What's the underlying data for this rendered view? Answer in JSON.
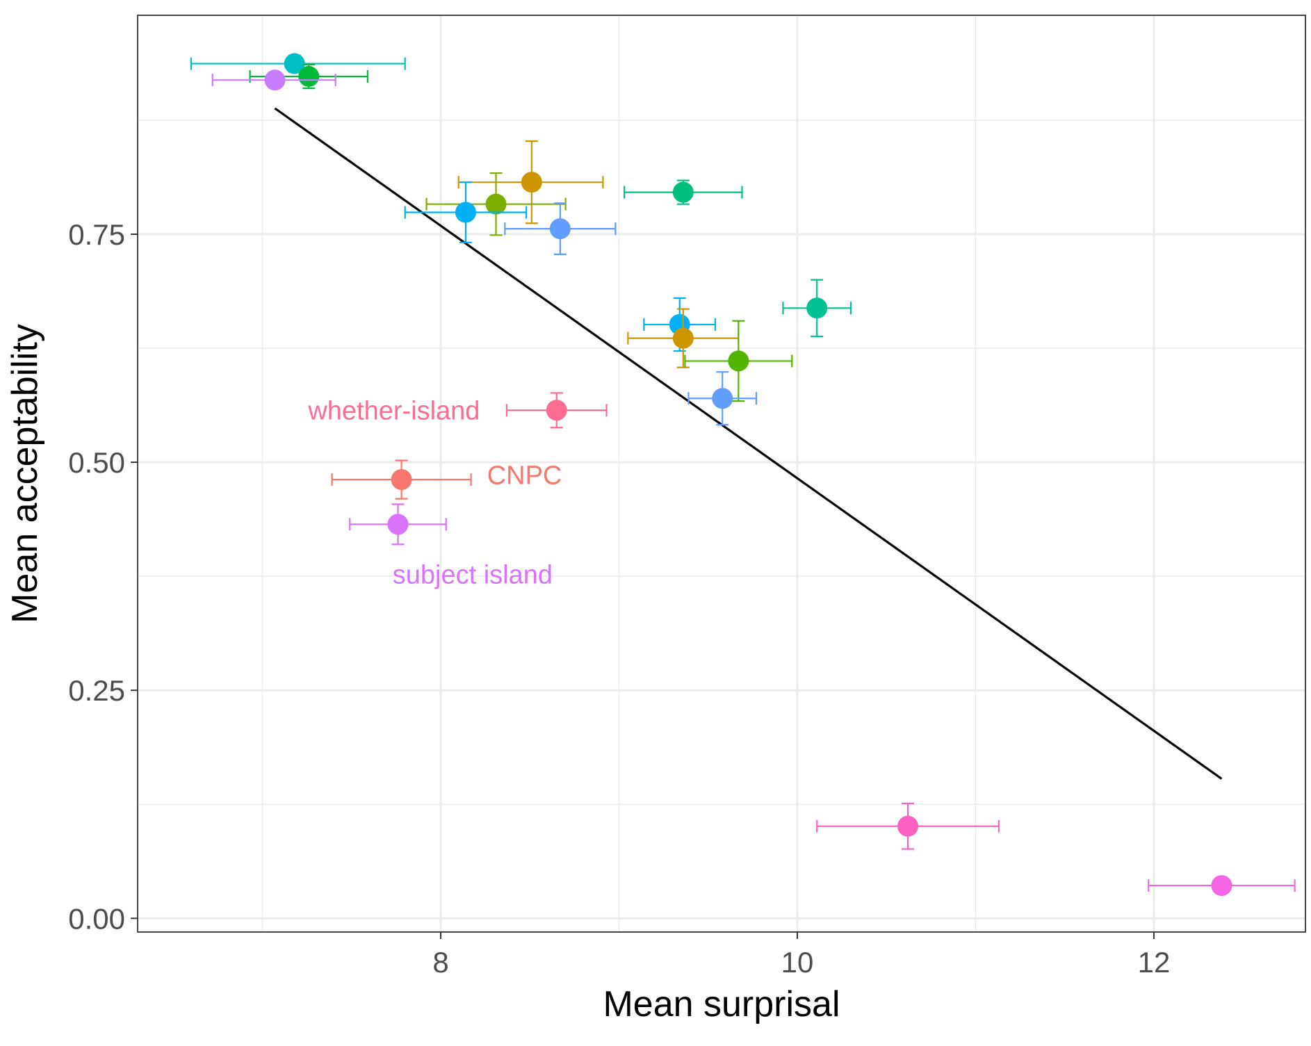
{
  "chart_data": {
    "type": "scatter",
    "title": "",
    "xlabel": "Mean surprisal",
    "ylabel": "Mean acceptability",
    "xlim": [
      6.3,
      12.85
    ],
    "ylim": [
      -0.015,
      0.99
    ],
    "x_ticks": [
      8,
      10,
      12
    ],
    "x_tick_labels": [
      "8",
      "10",
      "12"
    ],
    "y_ticks": [
      0.0,
      0.25,
      0.5,
      0.75
    ],
    "y_tick_labels": [
      "0.00",
      "0.25",
      "0.50",
      "0.75"
    ],
    "x_minor": [
      7,
      9,
      11,
      13
    ],
    "y_minor": [
      0.125,
      0.375,
      0.625,
      0.875
    ],
    "grid": true,
    "legend": "none",
    "point_radius": 12,
    "regression_line": {
      "x": [
        7.07,
        12.38
      ],
      "y": [
        0.888,
        0.153
      ],
      "color": "#000000"
    },
    "points": [
      {
        "x": 7.18,
        "y": 0.937,
        "xerr": [
          6.6,
          7.8
        ],
        "yerr": [
          0.928,
          0.946
        ],
        "color": "#00BFC4"
      },
      {
        "x": 7.26,
        "y": 0.923,
        "xerr": [
          6.93,
          7.59
        ],
        "yerr": [
          0.91,
          0.936
        ],
        "color": "#00BA38"
      },
      {
        "x": 7.07,
        "y": 0.919,
        "xerr": [
          6.72,
          7.41
        ],
        "yerr": [
          0.912,
          0.926
        ],
        "color": "#C77CFF"
      },
      {
        "x": 8.51,
        "y": 0.807,
        "xerr": [
          8.1,
          8.91
        ],
        "yerr": [
          0.762,
          0.852
        ],
        "color": "#CD9600"
      },
      {
        "x": 8.31,
        "y": 0.783,
        "xerr": [
          7.92,
          8.7
        ],
        "yerr": [
          0.749,
          0.817
        ],
        "color": "#7CAE00"
      },
      {
        "x": 9.36,
        "y": 0.796,
        "xerr": [
          9.03,
          9.69
        ],
        "yerr": [
          0.783,
          0.809
        ],
        "color": "#00BF7D"
      },
      {
        "x": 8.14,
        "y": 0.774,
        "xerr": [
          7.8,
          8.48
        ],
        "yerr": [
          0.741,
          0.807
        ],
        "color": "#00B0F6"
      },
      {
        "x": 8.67,
        "y": 0.756,
        "xerr": [
          8.36,
          8.98
        ],
        "yerr": [
          0.728,
          0.784
        ],
        "color": "#619CFF"
      },
      {
        "x": 10.11,
        "y": 0.669,
        "xerr": [
          9.92,
          10.3
        ],
        "yerr": [
          0.638,
          0.7
        ],
        "color": "#00C094"
      },
      {
        "x": 9.34,
        "y": 0.651,
        "xerr": [
          9.14,
          9.54
        ],
        "yerr": [
          0.622,
          0.68
        ],
        "color": "#00B0F6"
      },
      {
        "x": 9.36,
        "y": 0.636,
        "xerr": [
          9.05,
          9.67
        ],
        "yerr": [
          0.604,
          0.668
        ],
        "color": "#CD9600"
      },
      {
        "x": 9.67,
        "y": 0.611,
        "xerr": [
          9.37,
          9.97
        ],
        "yerr": [
          0.567,
          0.655
        ],
        "color": "#53B400"
      },
      {
        "x": 9.58,
        "y": 0.57,
        "xerr": [
          9.39,
          9.77
        ],
        "yerr": [
          0.541,
          0.599
        ],
        "color": "#619CFF"
      },
      {
        "x": 8.65,
        "y": 0.557,
        "xerr": [
          8.37,
          8.93
        ],
        "yerr": [
          0.538,
          0.576
        ],
        "color": "#FF6C91",
        "label": "whether-island"
      },
      {
        "x": 7.78,
        "y": 0.481,
        "xerr": [
          7.39,
          8.17
        ],
        "yerr": [
          0.46,
          0.502
        ],
        "color": "#F8766D",
        "label": "CNPC"
      },
      {
        "x": 7.76,
        "y": 0.432,
        "xerr": [
          7.49,
          8.03
        ],
        "yerr": [
          0.41,
          0.454
        ],
        "color": "#DB72FB",
        "label": "subject island"
      },
      {
        "x": 10.62,
        "y": 0.101,
        "xerr": [
          10.11,
          11.13
        ],
        "yerr": [
          0.076,
          0.126
        ],
        "color": "#FF61C3"
      },
      {
        "x": 12.38,
        "y": 0.036,
        "xerr": [
          11.97,
          12.79
        ],
        "yerr": [
          0.036,
          0.036
        ],
        "color": "#F564E3"
      }
    ],
    "annotations": [
      {
        "text": "whether-island",
        "color": "#FF6C91",
        "anchor": "end",
        "x": 8.22,
        "y": 0.557
      },
      {
        "text": "CNPC",
        "color": "#F8766D",
        "anchor": "start",
        "x": 8.26,
        "y": 0.486
      },
      {
        "text": "subject island",
        "color": "#DB72FB",
        "anchor": "start",
        "x": 7.73,
        "y": 0.377
      }
    ]
  }
}
